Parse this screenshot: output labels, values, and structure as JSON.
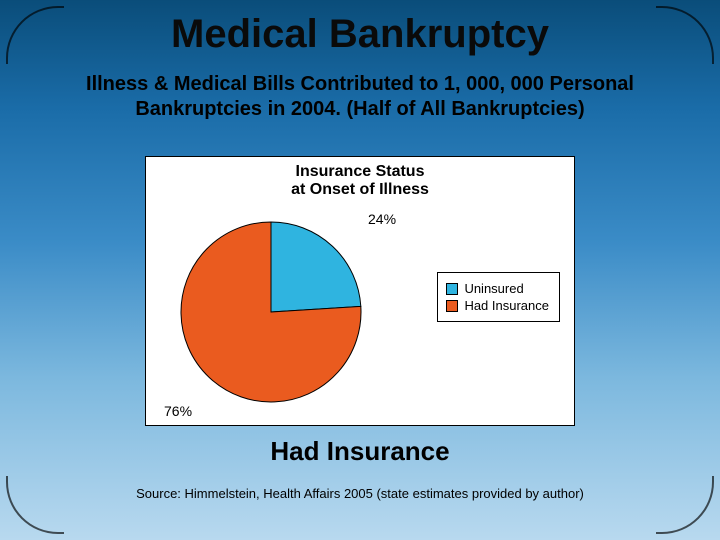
{
  "slide": {
    "title": "Medical Bankruptcy",
    "subtitle": "Illness & Medical Bills Contributed to 1, 000, 000 Personal Bankruptcies in 2004. (Half of All Bankruptcies)",
    "footer_label": "Had Insurance",
    "source": "Source: Himmelstein, Health Affairs 2005 (state estimates provided by author)",
    "background_gradient": [
      "#0a4d7a",
      "#1a6ca8",
      "#3b8cc7",
      "#7cb8de",
      "#b8d9ef"
    ],
    "title_fontsize": 40,
    "subtitle_fontsize": 20,
    "footer_fontsize": 26,
    "source_fontsize": 13
  },
  "chart": {
    "type": "pie",
    "title": "Insurance Status\nat Onset of Illness",
    "title_fontsize": 16,
    "background_color": "#ffffff",
    "border_color": "#000000",
    "slices": [
      {
        "label": "Uninsured",
        "value": 24,
        "display": "24%",
        "color": "#2fb4e0"
      },
      {
        "label": "Had Insurance",
        "value": 76,
        "display": "76%",
        "color": "#ea5b1f"
      }
    ],
    "pie_border_color": "#000000",
    "pie_border_width": 1,
    "legend": {
      "position": "right",
      "border_color": "#000000",
      "items": [
        {
          "swatch": "#2fb4e0",
          "label": "Uninsured"
        },
        {
          "swatch": "#ea5b1f",
          "label": "Had Insurance"
        }
      ]
    },
    "label_fontsize": 14
  }
}
